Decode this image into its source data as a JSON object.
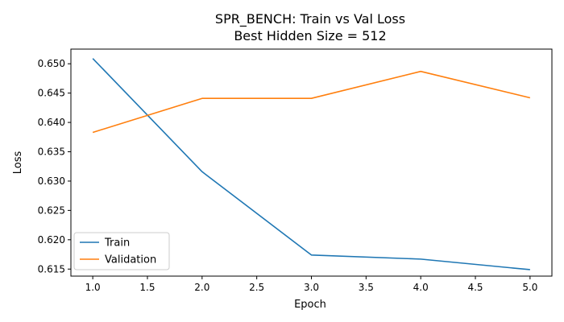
{
  "chart_data": {
    "type": "line",
    "title": "SPR_BENCH: Train vs Val Loss",
    "subtitle": "Best Hidden Size = 512",
    "xlabel": "Epoch",
    "ylabel": "Loss",
    "x": [
      1,
      2,
      3,
      4,
      5
    ],
    "xlim": [
      0.8,
      5.2
    ],
    "ylim": [
      0.6138,
      0.6525
    ],
    "xticks": [
      1.0,
      1.5,
      2.0,
      2.5,
      3.0,
      3.5,
      4.0,
      4.5,
      5.0
    ],
    "xtick_labels": [
      "1.0",
      "1.5",
      "2.0",
      "2.5",
      "3.0",
      "3.5",
      "4.0",
      "4.5",
      "5.0"
    ],
    "yticks": [
      0.615,
      0.62,
      0.625,
      0.63,
      0.635,
      0.64,
      0.645,
      0.65
    ],
    "ytick_labels": [
      "0.615",
      "0.620",
      "0.625",
      "0.630",
      "0.635",
      "0.640",
      "0.645",
      "0.650"
    ],
    "grid": false,
    "legend_position": "lower-left",
    "series": [
      {
        "name": "Train",
        "color": "#1f77b4",
        "values": [
          0.6509,
          0.6316,
          0.6174,
          0.6167,
          0.6149
        ]
      },
      {
        "name": "Validation",
        "color": "#ff7f0e",
        "values": [
          0.6383,
          0.6441,
          0.6441,
          0.6487,
          0.6442
        ]
      }
    ]
  }
}
